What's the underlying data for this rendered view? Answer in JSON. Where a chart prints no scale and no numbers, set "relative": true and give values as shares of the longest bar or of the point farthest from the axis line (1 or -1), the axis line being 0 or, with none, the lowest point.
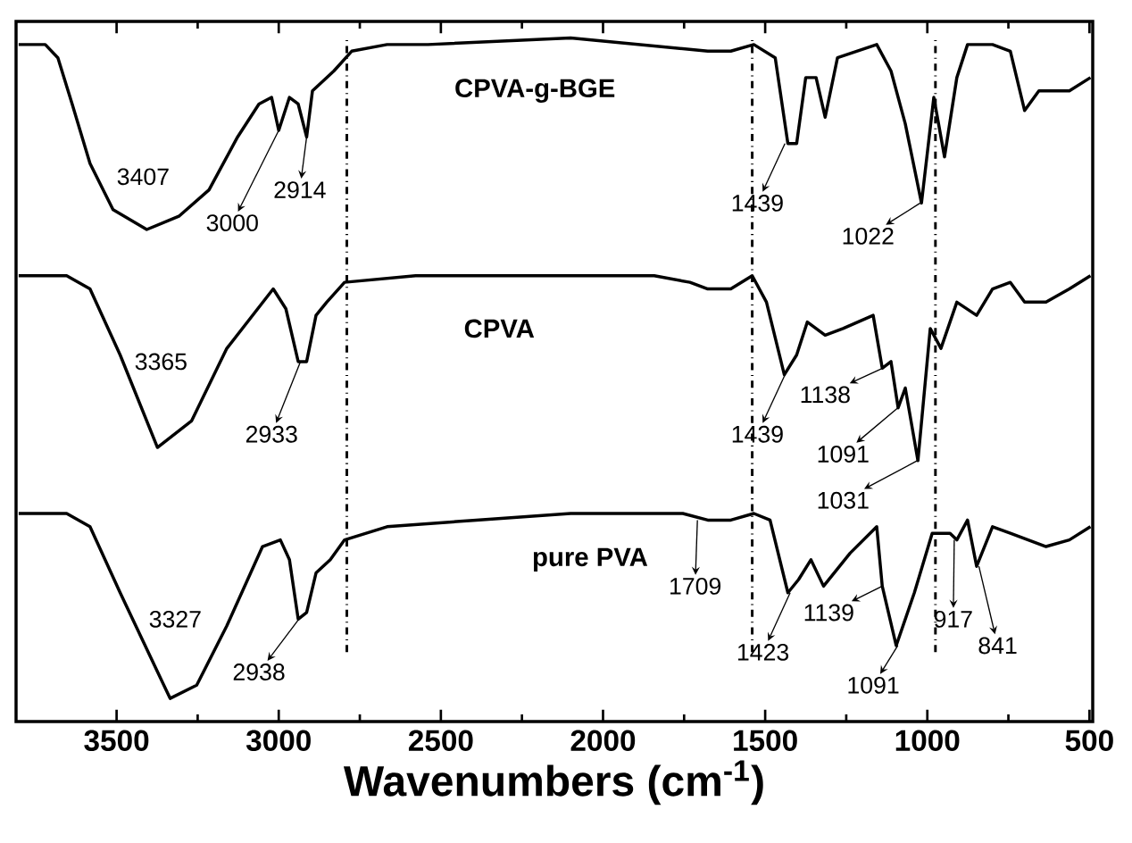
{
  "chart_data": {
    "type": "line",
    "relative": true,
    "xlabel": "Wavenumbers (cm$^{-1}$)",
    "xlim": [
      3810,
      490
    ],
    "xticks": [
      3500,
      3000,
      2500,
      2000,
      1500,
      1000,
      500
    ],
    "tick_labels": "x",
    "series": [
      {
        "name": "CPVA-g-BGE",
        "color": "#000000",
        "x": [
          3802,
          3720,
          3681,
          3637,
          3582,
          3511,
          3407,
          3308,
          3215,
          3127,
          3061,
          3022,
          3000,
          2967,
          2940,
          2914,
          2896,
          2830,
          2775,
          2666,
          2540,
          2100,
          1677,
          1606,
          1535,
          1469,
          1430,
          1403,
          1375,
          1343,
          1315,
          1277,
          1156,
          1112,
          1068,
          1018,
          980,
          947,
          909,
          876,
          799,
          744,
          700,
          656,
          562,
          497
        ],
        "values": [
          0.99,
          0.99,
          0.97,
          0.9,
          0.81,
          0.74,
          0.71,
          0.73,
          0.77,
          0.85,
          0.9,
          0.91,
          0.86,
          0.91,
          0.9,
          0.85,
          0.92,
          0.95,
          0.98,
          0.99,
          0.99,
          1.0,
          0.98,
          0.98,
          0.99,
          0.97,
          0.84,
          0.84,
          0.94,
          0.94,
          0.88,
          0.97,
          0.99,
          0.95,
          0.87,
          0.75,
          0.91,
          0.82,
          0.94,
          0.99,
          0.99,
          0.98,
          0.89,
          0.92,
          0.92,
          0.94
        ]
      },
      {
        "name": "CPVA",
        "color": "#000000",
        "x": [
          3802,
          3654,
          3582,
          3489,
          3374,
          3269,
          3160,
          3017,
          2978,
          2940,
          2914,
          2885,
          2852,
          2797,
          2578,
          2100,
          1842,
          1732,
          1677,
          1606,
          1540,
          1496,
          1441,
          1403,
          1370,
          1315,
          1260,
          1167,
          1139,
          1112,
          1090,
          1068,
          1029,
          991,
          958,
          909,
          848,
          799,
          744,
          700,
          634,
          562,
          497
        ],
        "values": [
          0.64,
          0.64,
          0.62,
          0.52,
          0.38,
          0.42,
          0.53,
          0.62,
          0.59,
          0.51,
          0.51,
          0.58,
          0.6,
          0.63,
          0.64,
          0.64,
          0.64,
          0.63,
          0.62,
          0.62,
          0.64,
          0.6,
          0.49,
          0.52,
          0.57,
          0.55,
          0.56,
          0.58,
          0.5,
          0.51,
          0.44,
          0.47,
          0.36,
          0.56,
          0.53,
          0.6,
          0.58,
          0.62,
          0.63,
          0.6,
          0.6,
          0.62,
          0.64
        ]
      },
      {
        "name": "pure PVA",
        "color": "#000000",
        "x": [
          3802,
          3654,
          3582,
          3489,
          3335,
          3253,
          3160,
          3050,
          2995,
          2967,
          2940,
          2914,
          2885,
          2841,
          2797,
          2666,
          2391,
          2100,
          1754,
          1677,
          1606,
          1535,
          1485,
          1430,
          1397,
          1359,
          1320,
          1238,
          1156,
          1139,
          1096,
          1040,
          985,
          930,
          909,
          876,
          848,
          799,
          744,
          634,
          562,
          497
        ],
        "values": [
          0.28,
          0.28,
          0.26,
          0.16,
          0.0,
          0.02,
          0.11,
          0.23,
          0.24,
          0.21,
          0.12,
          0.13,
          0.19,
          0.21,
          0.24,
          0.26,
          0.27,
          0.28,
          0.28,
          0.27,
          0.27,
          0.28,
          0.27,
          0.16,
          0.18,
          0.21,
          0.17,
          0.22,
          0.26,
          0.17,
          0.08,
          0.16,
          0.25,
          0.25,
          0.24,
          0.27,
          0.2,
          0.26,
          0.25,
          0.23,
          0.24,
          0.26
        ]
      }
    ],
    "ref_lines": [
      {
        "axis": "x",
        "value": 2790,
        "color": "#000000",
        "line_style": "dashdot"
      },
      {
        "axis": "x",
        "value": 1540,
        "color": "#000000",
        "line_style": "dashdot"
      },
      {
        "axis": "x",
        "value": 975,
        "color": "#000000",
        "line_style": "dashdot"
      }
    ],
    "annotations": [
      "3407",
      {
        "text": "3000",
        "x": 3000,
        "y": 0.86
      },
      {
        "text": "2914",
        "x": 2914,
        "y": 0.85
      },
      {
        "text": "1439",
        "x": 1439,
        "y": 0.84
      },
      {
        "text": "1022",
        "x": 1022,
        "y": 0.75
      },
      "3365",
      {
        "text": "2933",
        "x": 2933,
        "y": 0.51
      },
      {
        "text": "1439",
        "x": 1439,
        "y": 0.49
      },
      {
        "text": "1138",
        "x": 1138,
        "y": 0.5
      },
      {
        "text": "1091",
        "x": 1091,
        "y": 0.44
      },
      {
        "text": "1031",
        "x": 1031,
        "y": 0.36
      },
      "3327",
      {
        "text": "2938",
        "x": 2938,
        "y": 0.12
      },
      {
        "text": "1709",
        "x": 1709,
        "y": 0.27
      },
      {
        "text": "1423",
        "x": 1423,
        "y": 0.16
      },
      {
        "text": "1139",
        "x": 1139,
        "y": 0.17
      },
      {
        "text": "1091",
        "x": 1091,
        "y": 0.08
      },
      {
        "text": "917",
        "x": 917,
        "y": 0.24
      },
      {
        "text": "841",
        "x": 841,
        "y": 0.2
      }
    ]
  }
}
